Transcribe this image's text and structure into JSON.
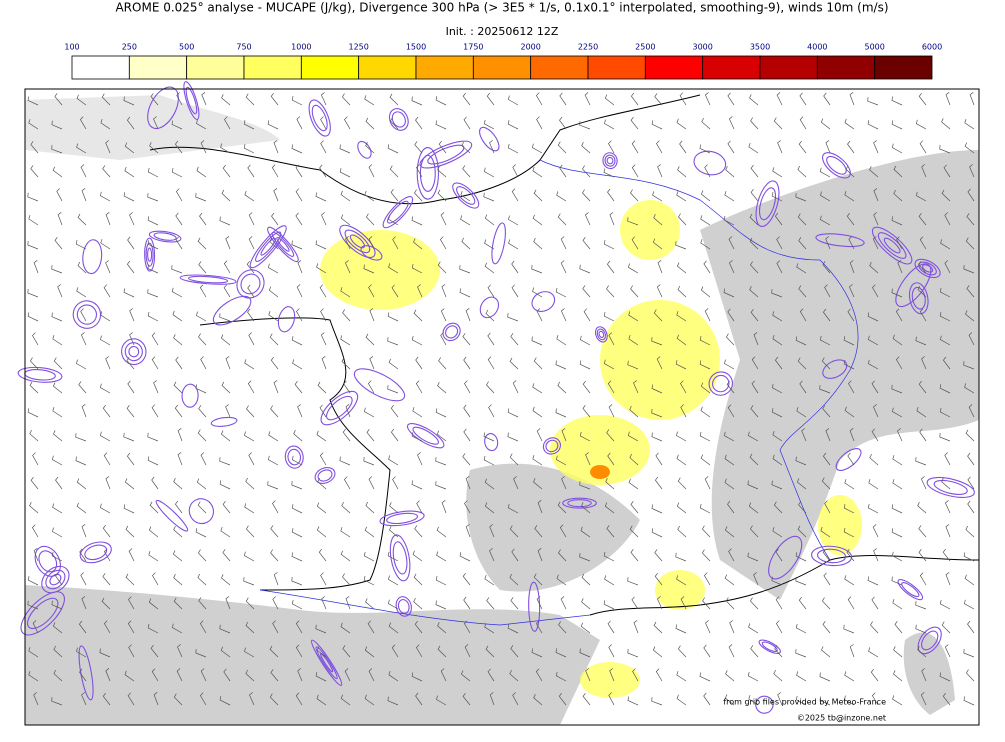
{
  "header": {
    "title": "AROME 0.025° analyse - MUCAPE (J/kg), Divergence 300 hPa (> 3E5 * 1/s, 0.1x0.1° interpolated, smoothing-9), winds 10m (m/s)",
    "init": "Init. : 20250612 12Z"
  },
  "colorbar": {
    "ticks": [
      100,
      250,
      500,
      750,
      1000,
      1250,
      1500,
      1750,
      2000,
      2250,
      2500,
      3000,
      3500,
      4000,
      5000,
      6000
    ],
    "colors": [
      "#ffffff",
      "#ffffc8",
      "#ffff9a",
      "#ffff60",
      "#ffff00",
      "#ffd800",
      "#ffaa00",
      "#ff9000",
      "#ff6a00",
      "#ff4a00",
      "#ff0000",
      "#d80000",
      "#b40000",
      "#900000",
      "#6a0000"
    ]
  },
  "credits": {
    "source": "from grib files provided by Meteo-France",
    "copyright": "©2025 tb@inzone.net"
  }
}
